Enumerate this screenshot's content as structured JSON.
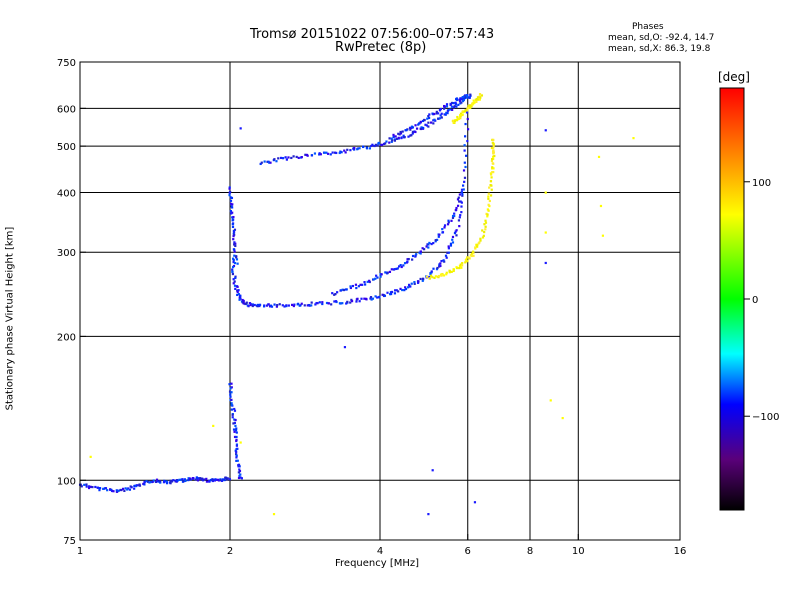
{
  "header": {
    "title_line1": "Tromsø 20151022 07:56:00–07:57:43",
    "title_line2": "RwPretec (8p)"
  },
  "phase_stats": {
    "heading": "Phases",
    "line_o": "mean, sd,O: -92.4, 14.7",
    "line_x": "mean, sd,X:  86.3, 19.8"
  },
  "colorbar": {
    "unit_label": "[deg]",
    "ticks": [
      {
        "value": 100,
        "label": "100"
      },
      {
        "value": 0,
        "label": "0"
      },
      {
        "value": -100,
        "label": "−100"
      }
    ],
    "range": [
      -180,
      180
    ]
  },
  "chart_data": {
    "type": "scatter",
    "title": "Tromsø 20151022 07:56:00–07:57:43",
    "subtitle": "RwPretec (8p)",
    "xlabel": "Frequency [MHz]",
    "ylabel": "Stationary phase Virtual Height [km]",
    "x_scale": "log",
    "y_scale": "log",
    "xlim": [
      1,
      16
    ],
    "ylim": [
      75,
      750
    ],
    "x_ticks": [
      1,
      2,
      4,
      6,
      8,
      10,
      16
    ],
    "y_ticks": [
      75,
      100,
      200,
      300,
      400,
      500,
      600,
      750
    ],
    "x_grid": [
      2,
      4,
      6,
      8,
      10
    ],
    "y_grid": [
      100,
      200,
      300,
      400,
      500,
      600
    ],
    "series": [
      {
        "name": "O-mode",
        "phase_mean": -92.4,
        "phase_sd": 14.7,
        "traces": [
          {
            "x": [
              1.0,
              1.1,
              1.2,
              1.3,
              1.4,
              1.5,
              1.6,
              1.7,
              1.8,
              1.9,
              2.0
            ],
            "y": [
              98,
              96,
              95,
              97,
              100,
              99,
              100,
              101,
              100,
              100,
              101
            ]
          },
          {
            "x": [
              2.0,
              2.03,
              2.05,
              2.07,
              2.1
            ],
            "y": [
              160,
              140,
              125,
              110,
              100
            ]
          },
          {
            "x": [
              2.02,
              2.05,
              2.1,
              2.2,
              2.4,
              2.7,
              3.0,
              3.4,
              3.8,
              4.2,
              4.6,
              5.0,
              5.4,
              5.7,
              5.9,
              6.0
            ],
            "y": [
              290,
              255,
              238,
              232,
              232,
              233,
              234,
              236,
              240,
              246,
              255,
              268,
              290,
              330,
              420,
              600
            ]
          },
          {
            "x": [
              2.0,
              2.02,
              2.04,
              2.06
            ],
            "y": [
              410,
              360,
              320,
              280
            ]
          },
          {
            "x": [
              3.2,
              3.6,
              4.0,
              4.4,
              4.8,
              5.2,
              5.6,
              5.9
            ],
            "y": [
              245,
              255,
              268,
              280,
              300,
              320,
              355,
              410
            ]
          },
          {
            "x": [
              2.3,
              2.6,
              3.0,
              3.4,
              3.8,
              4.2,
              4.6,
              5.0,
              5.4,
              5.8,
              6.1
            ],
            "y": [
              460,
              472,
              480,
              488,
              498,
              512,
              530,
              555,
              585,
              620,
              640
            ]
          },
          {
            "x": [
              4.2,
              4.6,
              5.0,
              5.4,
              5.8,
              6.0
            ],
            "y": [
              520,
              545,
              575,
              605,
              630,
              640
            ]
          }
        ],
        "scattered": [
          {
            "x": 2.1,
            "y": 545
          },
          {
            "x": 3.4,
            "y": 190
          },
          {
            "x": 5.1,
            "y": 105
          },
          {
            "x": 5.0,
            "y": 85
          },
          {
            "x": 6.2,
            "y": 90
          },
          {
            "x": 8.6,
            "y": 540
          },
          {
            "x": 8.6,
            "y": 285
          }
        ]
      },
      {
        "name": "X-mode",
        "phase_mean": 86.3,
        "phase_sd": 19.8,
        "traces": [
          {
            "x": [
              5.0,
              5.4,
              5.8,
              6.1,
              6.4,
              6.6,
              6.7,
              6.75,
              6.75
            ],
            "y": [
              265,
              270,
              280,
              295,
              320,
              370,
              430,
              480,
              520
            ]
          },
          {
            "x": [
              5.6,
              5.8,
              6.0,
              6.2,
              6.4
            ],
            "y": [
              560,
              580,
              600,
              620,
              640
            ]
          }
        ],
        "scattered": [
          {
            "x": 1.05,
            "y": 112
          },
          {
            "x": 1.85,
            "y": 130
          },
          {
            "x": 2.1,
            "y": 120
          },
          {
            "x": 2.45,
            "y": 85
          },
          {
            "x": 8.6,
            "y": 400
          },
          {
            "x": 8.6,
            "y": 330
          },
          {
            "x": 8.8,
            "y": 147
          },
          {
            "x": 11.0,
            "y": 475
          },
          {
            "x": 11.1,
            "y": 375
          },
          {
            "x": 11.2,
            "y": 325
          },
          {
            "x": 12.9,
            "y": 520
          },
          {
            "x": 9.3,
            "y": 135
          }
        ]
      }
    ]
  }
}
